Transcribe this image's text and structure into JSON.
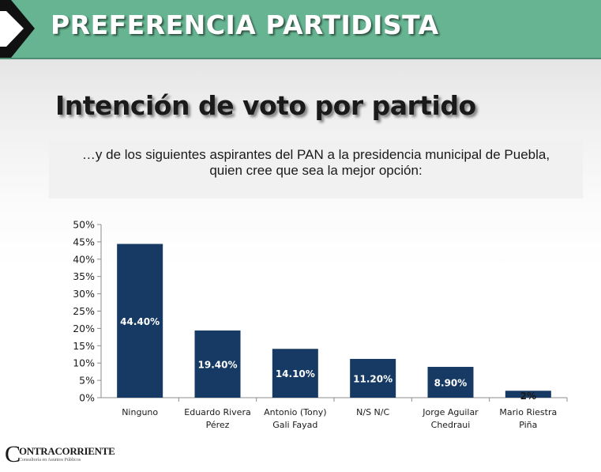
{
  "header": {
    "title": "PREFERENCIA PARTIDISTA",
    "band_color": "#66b491"
  },
  "subtitle": "Intención de voto por partido",
  "question": {
    "line1": "…y de los siguientes aspirantes del PAN a la presidencia municipal de Puebla,",
    "line2": "quien cree que sea la mejor opción:"
  },
  "logo": {
    "name": "ONTRACORRIENTE",
    "initial": "C",
    "tagline": "Consultoría en Asuntos Públicos"
  },
  "chart_data": {
    "type": "bar",
    "categories": [
      [
        "Ninguno"
      ],
      [
        "Eduardo Rivera",
        "Pérez"
      ],
      [
        "Antonio (Tony)",
        "Gali Fayad"
      ],
      [
        "N/S N/C"
      ],
      [
        "Jorge Aguilar",
        "Chedraui"
      ],
      [
        "Mario Riestra",
        "Piña"
      ]
    ],
    "values": [
      44.4,
      19.4,
      14.1,
      11.2,
      8.9,
      2
    ],
    "data_labels": [
      "44.40%",
      "19.40%",
      "14.10%",
      "11.20%",
      "8.90%",
      "2%"
    ],
    "ylim": [
      0,
      50
    ],
    "yticks": [
      0,
      5,
      10,
      15,
      20,
      25,
      30,
      35,
      40,
      45,
      50
    ],
    "ytick_labels": [
      "0%",
      "5%",
      "10%",
      "15%",
      "20%",
      "25%",
      "30%",
      "35%",
      "40%",
      "45%",
      "50%"
    ],
    "bar_color": "#163a63",
    "grid": false,
    "title": "",
    "xlabel": "",
    "ylabel": ""
  }
}
